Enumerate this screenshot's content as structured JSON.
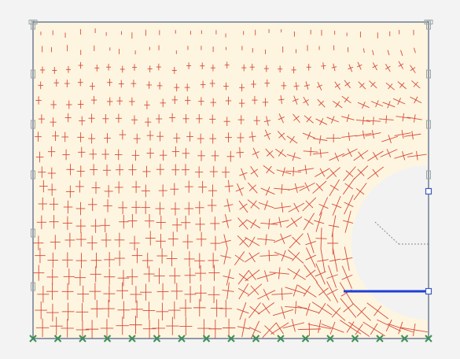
{
  "diagram": {
    "kind": "principal stress crosses around circular opening (half-model)",
    "colors": {
      "page_bg": "#f3f3f3",
      "model_fill": "#fdf5df",
      "border": "#5c6a86",
      "cross": "#d84a3a",
      "support_marker": "#9aa5a0",
      "fixed_node": "#3c8f55",
      "symmetry_line": "#1f3fd8",
      "hole_fill": "#f2f2f2",
      "hole_edge_marker": "#3b59c9",
      "radius_dash": "#8a8a8a"
    },
    "icons": {
      "roller_support": "roller-support-icon",
      "fixed_node": "fixed-node-icon"
    }
  }
}
